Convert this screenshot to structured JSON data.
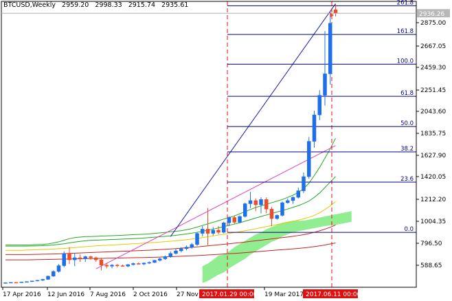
{
  "header": {
    "symbol": "BTCUSD,Weekly",
    "open": "2959.20",
    "high": "2998.33",
    "low": "2915.74",
    "close": "2935.61"
  },
  "price_scale": {
    "labels": [
      "2875.00",
      "2667.05",
      "2459.30",
      "2251.45",
      "2043.60",
      "1835.75",
      "1627.90",
      "1420.05",
      "1212.20",
      "1004.35",
      "796.50",
      "588.65"
    ],
    "current_price": "2936.26"
  },
  "time_scale": {
    "labels": [
      "17 Apr 2016",
      "12 Jun 2016",
      "7 Aug 2016",
      "2 Oct 2016",
      "27 Nov",
      "19 Mar 2017"
    ],
    "marker_start": "2017.01.29 00:00",
    "marker_end": "2017.06.11 00:00"
  },
  "fibonacci": {
    "levels": [
      {
        "label": "261.8",
        "price": 2985
      },
      {
        "label": "161.8",
        "price": 2770
      },
      {
        "label": "100.0",
        "price": 2490
      },
      {
        "label": "61.8",
        "price": 2190
      },
      {
        "label": "50.0",
        "price": 1900
      },
      {
        "label": "38.2",
        "price": 1660
      },
      {
        "label": "23.6",
        "price": 1370
      },
      {
        "label": "0.0",
        "price": 900
      }
    ]
  },
  "colors": {
    "bull": "#1e6fe8",
    "bear": "#e84d2e",
    "fib": "#000080",
    "marker": "#e01010",
    "cloud": "#90ee90",
    "ma_green": "#22aa22",
    "ma_yellow": "#e8c800",
    "ma_red": "#c82020",
    "trend_magenta": "#e040c0",
    "trend_blue": "#1a1aa8"
  },
  "chart_data": {
    "type": "candlestick",
    "candles": [
      {
        "o": 420,
        "h": 425,
        "l": 418,
        "c": 423
      },
      {
        "o": 423,
        "h": 428,
        "l": 420,
        "c": 426
      },
      {
        "o": 426,
        "h": 430,
        "l": 422,
        "c": 424
      },
      {
        "o": 424,
        "h": 432,
        "l": 422,
        "c": 430
      },
      {
        "o": 430,
        "h": 436,
        "l": 428,
        "c": 434
      },
      {
        "o": 434,
        "h": 442,
        "l": 430,
        "c": 440
      },
      {
        "o": 440,
        "h": 450,
        "l": 436,
        "c": 446
      },
      {
        "o": 446,
        "h": 460,
        "l": 440,
        "c": 455
      },
      {
        "o": 455,
        "h": 490,
        "l": 450,
        "c": 485
      },
      {
        "o": 485,
        "h": 540,
        "l": 480,
        "c": 530
      },
      {
        "o": 530,
        "h": 600,
        "l": 520,
        "c": 585
      },
      {
        "o": 585,
        "h": 720,
        "l": 570,
        "c": 700
      },
      {
        "o": 700,
        "h": 760,
        "l": 600,
        "c": 640
      },
      {
        "o": 640,
        "h": 700,
        "l": 580,
        "c": 660
      },
      {
        "o": 660,
        "h": 690,
        "l": 620,
        "c": 650
      },
      {
        "o": 650,
        "h": 680,
        "l": 620,
        "c": 670
      },
      {
        "o": 670,
        "h": 680,
        "l": 640,
        "c": 660
      },
      {
        "o": 660,
        "h": 670,
        "l": 620,
        "c": 640
      },
      {
        "o": 640,
        "h": 660,
        "l": 540,
        "c": 590
      },
      {
        "o": 590,
        "h": 610,
        "l": 560,
        "c": 580
      },
      {
        "o": 580,
        "h": 600,
        "l": 560,
        "c": 590
      },
      {
        "o": 590,
        "h": 600,
        "l": 570,
        "c": 585
      },
      {
        "o": 585,
        "h": 595,
        "l": 575,
        "c": 580
      },
      {
        "o": 580,
        "h": 600,
        "l": 570,
        "c": 595
      },
      {
        "o": 595,
        "h": 615,
        "l": 585,
        "c": 605
      },
      {
        "o": 605,
        "h": 615,
        "l": 595,
        "c": 600
      },
      {
        "o": 600,
        "h": 615,
        "l": 590,
        "c": 610
      },
      {
        "o": 610,
        "h": 625,
        "l": 600,
        "c": 615
      },
      {
        "o": 615,
        "h": 640,
        "l": 610,
        "c": 635
      },
      {
        "o": 635,
        "h": 660,
        "l": 625,
        "c": 650
      },
      {
        "o": 650,
        "h": 680,
        "l": 640,
        "c": 670
      },
      {
        "o": 670,
        "h": 720,
        "l": 660,
        "c": 700
      },
      {
        "o": 700,
        "h": 745,
        "l": 690,
        "c": 725
      },
      {
        "o": 725,
        "h": 760,
        "l": 710,
        "c": 745
      },
      {
        "o": 745,
        "h": 775,
        "l": 730,
        "c": 760
      },
      {
        "o": 760,
        "h": 800,
        "l": 745,
        "c": 785
      },
      {
        "o": 785,
        "h": 900,
        "l": 770,
        "c": 890
      },
      {
        "o": 890,
        "h": 960,
        "l": 860,
        "c": 930
      },
      {
        "o": 930,
        "h": 1130,
        "l": 780,
        "c": 890
      },
      {
        "o": 890,
        "h": 950,
        "l": 870,
        "c": 920
      },
      {
        "o": 920,
        "h": 960,
        "l": 880,
        "c": 900
      },
      {
        "o": 900,
        "h": 1000,
        "l": 890,
        "c": 990
      },
      {
        "o": 990,
        "h": 1050,
        "l": 960,
        "c": 1040
      },
      {
        "o": 1040,
        "h": 1060,
        "l": 980,
        "c": 995
      },
      {
        "o": 995,
        "h": 1060,
        "l": 990,
        "c": 1050
      },
      {
        "o": 1050,
        "h": 1180,
        "l": 1040,
        "c": 1170
      },
      {
        "o": 1170,
        "h": 1280,
        "l": 1130,
        "c": 1200
      },
      {
        "o": 1200,
        "h": 1220,
        "l": 1100,
        "c": 1160
      },
      {
        "o": 1160,
        "h": 1230,
        "l": 1080,
        "c": 1210
      },
      {
        "o": 1210,
        "h": 1230,
        "l": 1080,
        "c": 1120
      },
      {
        "o": 1120,
        "h": 1140,
        "l": 960,
        "c": 1030
      },
      {
        "o": 1030,
        "h": 1070,
        "l": 1020,
        "c": 1060
      },
      {
        "o": 1060,
        "h": 1190,
        "l": 1050,
        "c": 1180
      },
      {
        "o": 1180,
        "h": 1220,
        "l": 1170,
        "c": 1200
      },
      {
        "o": 1200,
        "h": 1240,
        "l": 1170,
        "c": 1230
      },
      {
        "o": 1230,
        "h": 1320,
        "l": 1220,
        "c": 1290
      },
      {
        "o": 1290,
        "h": 1460,
        "l": 1270,
        "c": 1420
      },
      {
        "o": 1420,
        "h": 1800,
        "l": 1400,
        "c": 1760
      },
      {
        "o": 1760,
        "h": 2050,
        "l": 1700,
        "c": 2010
      },
      {
        "o": 2010,
        "h": 2250,
        "l": 1960,
        "c": 2200
      },
      {
        "o": 2200,
        "h": 2800,
        "l": 2100,
        "c": 2400
      },
      {
        "o": 2400,
        "h": 2950,
        "l": 2300,
        "c": 2870
      },
      {
        "o": 2959.2,
        "h": 2998.33,
        "l": 2915.74,
        "c": 2935.61
      }
    ],
    "ichimoku_cloud": {
      "from_index": 37,
      "upper": [
        580,
        605,
        640,
        680,
        690,
        720,
        760,
        790,
        820,
        850,
        880,
        900,
        930,
        950,
        970,
        990,
        1000,
        1010,
        1010,
        1010,
        1020,
        1030,
        1040,
        1050,
        1060,
        1070,
        1080,
        1090,
        1100
      ],
      "lower": [
        420,
        440,
        470,
        500,
        520,
        560,
        590,
        620,
        650,
        690,
        720,
        750,
        780,
        810,
        830,
        860,
        880,
        900,
        910,
        920,
        930,
        940,
        950,
        960,
        965,
        970,
        980,
        990,
        1000
      ]
    },
    "moving_averages": [
      {
        "color": "ma_green",
        "values": [
          780,
          780,
          780,
          780,
          780,
          782,
          784,
          786,
          790,
          800,
          810,
          825,
          840,
          850,
          855,
          860,
          860,
          862,
          865,
          866,
          868,
          870,
          872,
          875,
          878,
          880,
          882,
          885,
          890,
          895,
          900,
          905,
          910,
          915,
          925,
          935,
          950,
          965,
          980,
          995,
          1010,
          1025,
          1040,
          1055,
          1075,
          1095,
          1115,
          1135,
          1150,
          1165,
          1180,
          1195,
          1210,
          1230,
          1250,
          1275,
          1310,
          1360,
          1430,
          1510,
          1600,
          1690,
          1790
        ]
      },
      {
        "color": "ma_green",
        "values": [
          770,
          770,
          770,
          770,
          770,
          771,
          772,
          774,
          776,
          780,
          786,
          792,
          800,
          808,
          814,
          820,
          824,
          826,
          828,
          830,
          832,
          834,
          836,
          838,
          840,
          843,
          846,
          850,
          854,
          858,
          862,
          866,
          872,
          878,
          885,
          892,
          900,
          910,
          920,
          930,
          942,
          954,
          966,
          978,
          990,
          1005,
          1020,
          1035,
          1050,
          1064,
          1078,
          1092,
          1106,
          1120,
          1136,
          1152,
          1172,
          1196,
          1230,
          1270,
          1320,
          1370,
          1420
        ]
      },
      {
        "color": "ma_yellow",
        "values": [
          730,
          730,
          730,
          730,
          732,
          734,
          736,
          738,
          740,
          742,
          745,
          748,
          752,
          756,
          760,
          764,
          768,
          772,
          775,
          778,
          780,
          783,
          786,
          789,
          792,
          795,
          798,
          801,
          804,
          808,
          812,
          816,
          820,
          825,
          830,
          836,
          842,
          850,
          858,
          866,
          874,
          882,
          890,
          898,
          906,
          915,
          924,
          934,
          944,
          954,
          964,
          974,
          984,
          994,
          1004,
          1016,
          1028,
          1042,
          1060,
          1085,
          1115,
          1150,
          1190
        ]
      },
      {
        "color": "ma_red",
        "values": [
          690,
          690,
          690,
          690,
          690,
          691,
          692,
          693,
          694,
          695,
          697,
          699,
          701,
          703,
          705,
          707,
          709,
          711,
          713,
          715,
          717,
          719,
          721,
          723,
          725,
          727,
          729,
          731,
          734,
          737,
          740,
          743,
          746,
          750,
          754,
          758,
          762,
          767,
          772,
          777,
          782,
          787,
          792,
          797,
          802,
          808,
          814,
          820,
          826,
          832,
          838,
          844,
          850,
          856,
          862,
          870,
          878,
          888,
          900,
          914,
          930,
          948,
          970
        ]
      },
      {
        "color": "ma_red",
        "values": [
          640,
          640,
          640,
          640,
          640,
          641,
          642,
          643,
          644,
          645,
          646,
          647,
          648,
          649,
          650,
          651,
          652,
          653,
          654,
          655,
          656,
          657,
          658,
          659,
          660,
          661,
          662,
          663,
          664,
          666,
          668,
          670,
          672,
          674,
          676,
          678,
          680,
          683,
          686,
          689,
          692,
          695,
          698,
          701,
          704,
          708,
          712,
          716,
          720,
          724,
          728,
          732,
          736,
          740,
          744,
          748,
          753,
          758,
          765,
          772,
          780,
          790,
          800
        ]
      }
    ],
    "trendlines": [
      {
        "color": "trend_magenta",
        "from": {
          "index": 17,
          "price": 555
        },
        "to": {
          "index": 62,
          "price": 1720
        }
      },
      {
        "color": "trend_blue",
        "from": {
          "index": 31,
          "price": 860
        },
        "to": {
          "index": 62,
          "price": 2998
        }
      }
    ],
    "y_range": [
      500,
      3000
    ]
  }
}
